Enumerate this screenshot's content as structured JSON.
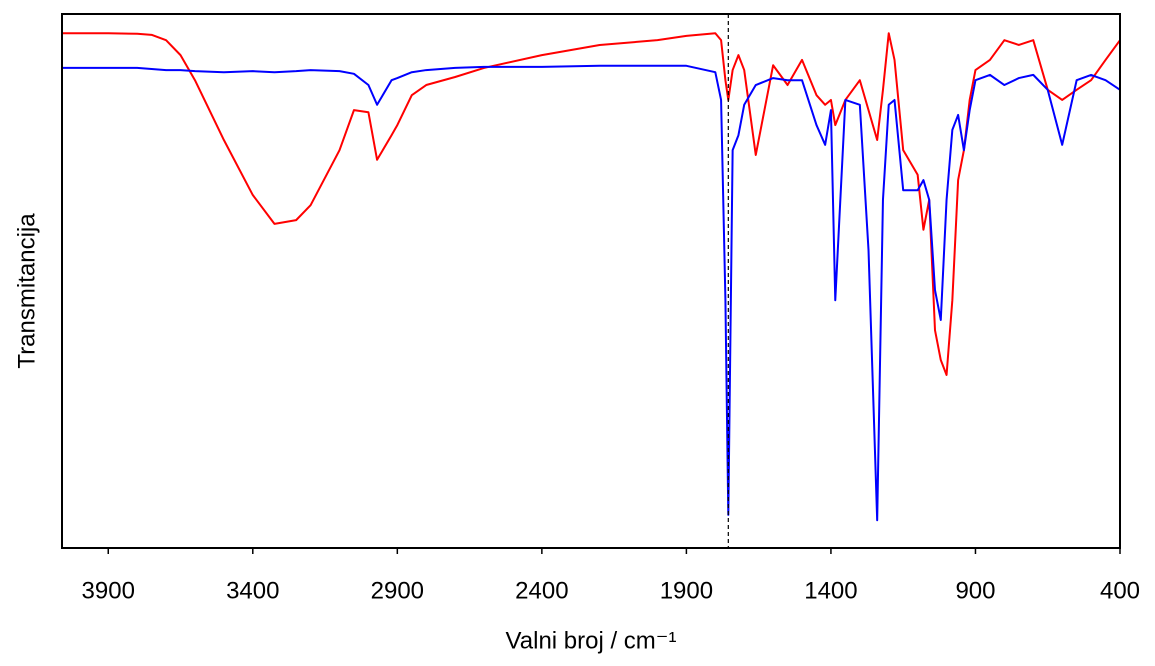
{
  "chart_data": {
    "type": "line",
    "xlabel": "Valni broj / cm⁻¹",
    "ylabel": "Transmitancija",
    "x": [
      4060,
      3900,
      3800,
      3750,
      3700,
      3650,
      3600,
      3500,
      3400,
      3325,
      3250,
      3200,
      3100,
      3050,
      3000,
      2970,
      2920,
      2900,
      2850,
      2800,
      2700,
      2600,
      2400,
      2200,
      2000,
      1900,
      1800,
      1780,
      1765,
      1755,
      1740,
      1720,
      1700,
      1660,
      1600,
      1550,
      1500,
      1450,
      1420,
      1400,
      1385,
      1350,
      1300,
      1270,
      1240,
      1220,
      1200,
      1180,
      1150,
      1100,
      1080,
      1060,
      1040,
      1020,
      1000,
      980,
      960,
      940,
      920,
      900,
      850,
      800,
      750,
      700,
      650,
      600,
      550,
      500,
      450,
      400
    ],
    "series": [
      {
        "color": "#ff0000",
        "values": [
          96.4,
          96.4,
          96.3,
          96.1,
          95.1,
          92.3,
          87.6,
          76.4,
          66.1,
          60.7,
          61.4,
          64.2,
          74.5,
          82.0,
          81.6,
          72.7,
          77.3,
          79.2,
          84.8,
          86.7,
          88.2,
          89.9,
          92.3,
          94.2,
          95.1,
          95.9,
          96.4,
          95.1,
          87.6,
          83.9,
          89.5,
          92.3,
          89.5,
          73.6,
          90.4,
          86.7,
          91.4,
          84.8,
          83.0,
          83.9,
          79.2,
          83.9,
          87.6,
          82.0,
          76.4,
          85.8,
          96.4,
          91.4,
          74.5,
          69.9,
          59.6,
          65.2,
          40.8,
          35.2,
          32.4,
          46.4,
          68.9,
          74.5,
          83.9,
          89.5,
          91.4,
          95.1,
          94.2,
          95.1,
          85.8,
          83.9,
          85.8,
          87.6,
          91.4,
          95.1
        ]
      },
      {
        "color": "#0000ff",
        "values": [
          89.9,
          89.9,
          89.9,
          89.7,
          89.5,
          89.5,
          89.3,
          89.1,
          89.3,
          89.1,
          89.3,
          89.5,
          89.3,
          88.8,
          86.7,
          83.0,
          87.6,
          88.0,
          89.1,
          89.5,
          89.9,
          90.1,
          90.1,
          90.3,
          90.3,
          90.3,
          89.1,
          83.9,
          46.4,
          6.2,
          74.5,
          77.3,
          83.0,
          86.7,
          88.0,
          87.6,
          87.6,
          79.2,
          75.5,
          82.0,
          46.4,
          83.9,
          83.0,
          55.8,
          5.2,
          65.2,
          83.0,
          83.9,
          67.0,
          67.0,
          68.9,
          65.2,
          48.3,
          42.7,
          65.2,
          78.3,
          81.1,
          74.5,
          82.0,
          87.6,
          88.6,
          86.7,
          88.0,
          88.6,
          85.8,
          75.5,
          87.6,
          88.6,
          87.6,
          85.8
        ]
      }
    ],
    "vline": 1755,
    "xlim": [
      4060,
      400
    ],
    "xticks": [
      3900,
      3400,
      2900,
      2400,
      1900,
      1400,
      900,
      400
    ],
    "ylim": [
      0,
      100
    ]
  }
}
